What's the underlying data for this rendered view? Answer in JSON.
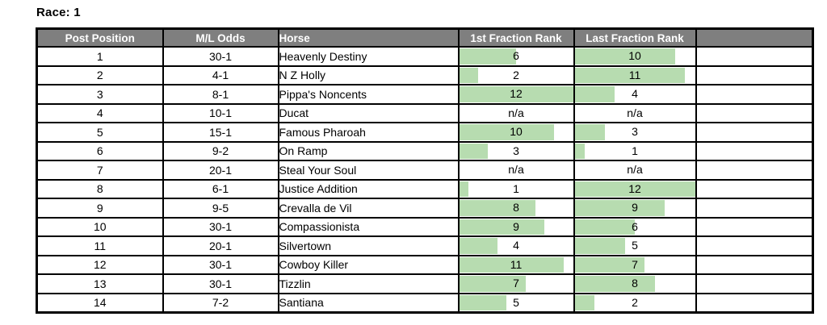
{
  "title": "Race: 1",
  "colors": {
    "header_bg": "#7f7f7f",
    "header_text": "#ffffff",
    "bar_fill": "#b7dcb0",
    "border": "#000000",
    "text": "#000000"
  },
  "table": {
    "bar_max": 12,
    "na_text": "n/a",
    "columns": [
      {
        "key": "post",
        "label": "Post Position",
        "align": "center",
        "type": "text"
      },
      {
        "key": "odds",
        "label": "M/L Odds",
        "align": "center",
        "type": "text"
      },
      {
        "key": "horse",
        "label": "Horse",
        "align": "left",
        "type": "text"
      },
      {
        "key": "first",
        "label": "1st Fraction Rank",
        "align": "center",
        "type": "bar"
      },
      {
        "key": "last",
        "label": "Last Fraction Rank",
        "align": "center",
        "type": "bar"
      },
      {
        "key": "blank",
        "label": "",
        "align": "center",
        "type": "text"
      }
    ],
    "rows": [
      {
        "post": "1",
        "odds": "30-1",
        "horse": "Heavenly Destiny",
        "first": "6",
        "last": "10",
        "blank": ""
      },
      {
        "post": "2",
        "odds": "4-1",
        "horse": "N Z Holly",
        "first": "2",
        "last": "11",
        "blank": ""
      },
      {
        "post": "3",
        "odds": "8-1",
        "horse": "Pippa's Noncents",
        "first": "12",
        "last": "4",
        "blank": ""
      },
      {
        "post": "4",
        "odds": "10-1",
        "horse": "Ducat",
        "first": "n/a",
        "last": "n/a",
        "blank": ""
      },
      {
        "post": "5",
        "odds": "15-1",
        "horse": "Famous Pharoah",
        "first": "10",
        "last": "3",
        "blank": ""
      },
      {
        "post": "6",
        "odds": "9-2",
        "horse": "On Ramp",
        "first": "3",
        "last": "1",
        "blank": ""
      },
      {
        "post": "7",
        "odds": "20-1",
        "horse": "Steal Your Soul",
        "first": "n/a",
        "last": "n/a",
        "blank": ""
      },
      {
        "post": "8",
        "odds": "6-1",
        "horse": "Justice Addition",
        "first": "1",
        "last": "12",
        "blank": ""
      },
      {
        "post": "9",
        "odds": "9-5",
        "horse": "Crevalla de Vil",
        "first": "8",
        "last": "9",
        "blank": ""
      },
      {
        "post": "10",
        "odds": "30-1",
        "horse": "Compassionista",
        "first": "9",
        "last": "6",
        "blank": ""
      },
      {
        "post": "11",
        "odds": "20-1",
        "horse": "Silvertown",
        "first": "4",
        "last": "5",
        "blank": ""
      },
      {
        "post": "12",
        "odds": "30-1",
        "horse": "Cowboy Killer",
        "first": "11",
        "last": "7",
        "blank": ""
      },
      {
        "post": "13",
        "odds": "30-1",
        "horse": "Tizzlin",
        "first": "7",
        "last": "8",
        "blank": ""
      },
      {
        "post": "14",
        "odds": "7-2",
        "horse": "Santiana",
        "first": "5",
        "last": "2",
        "blank": ""
      }
    ]
  }
}
